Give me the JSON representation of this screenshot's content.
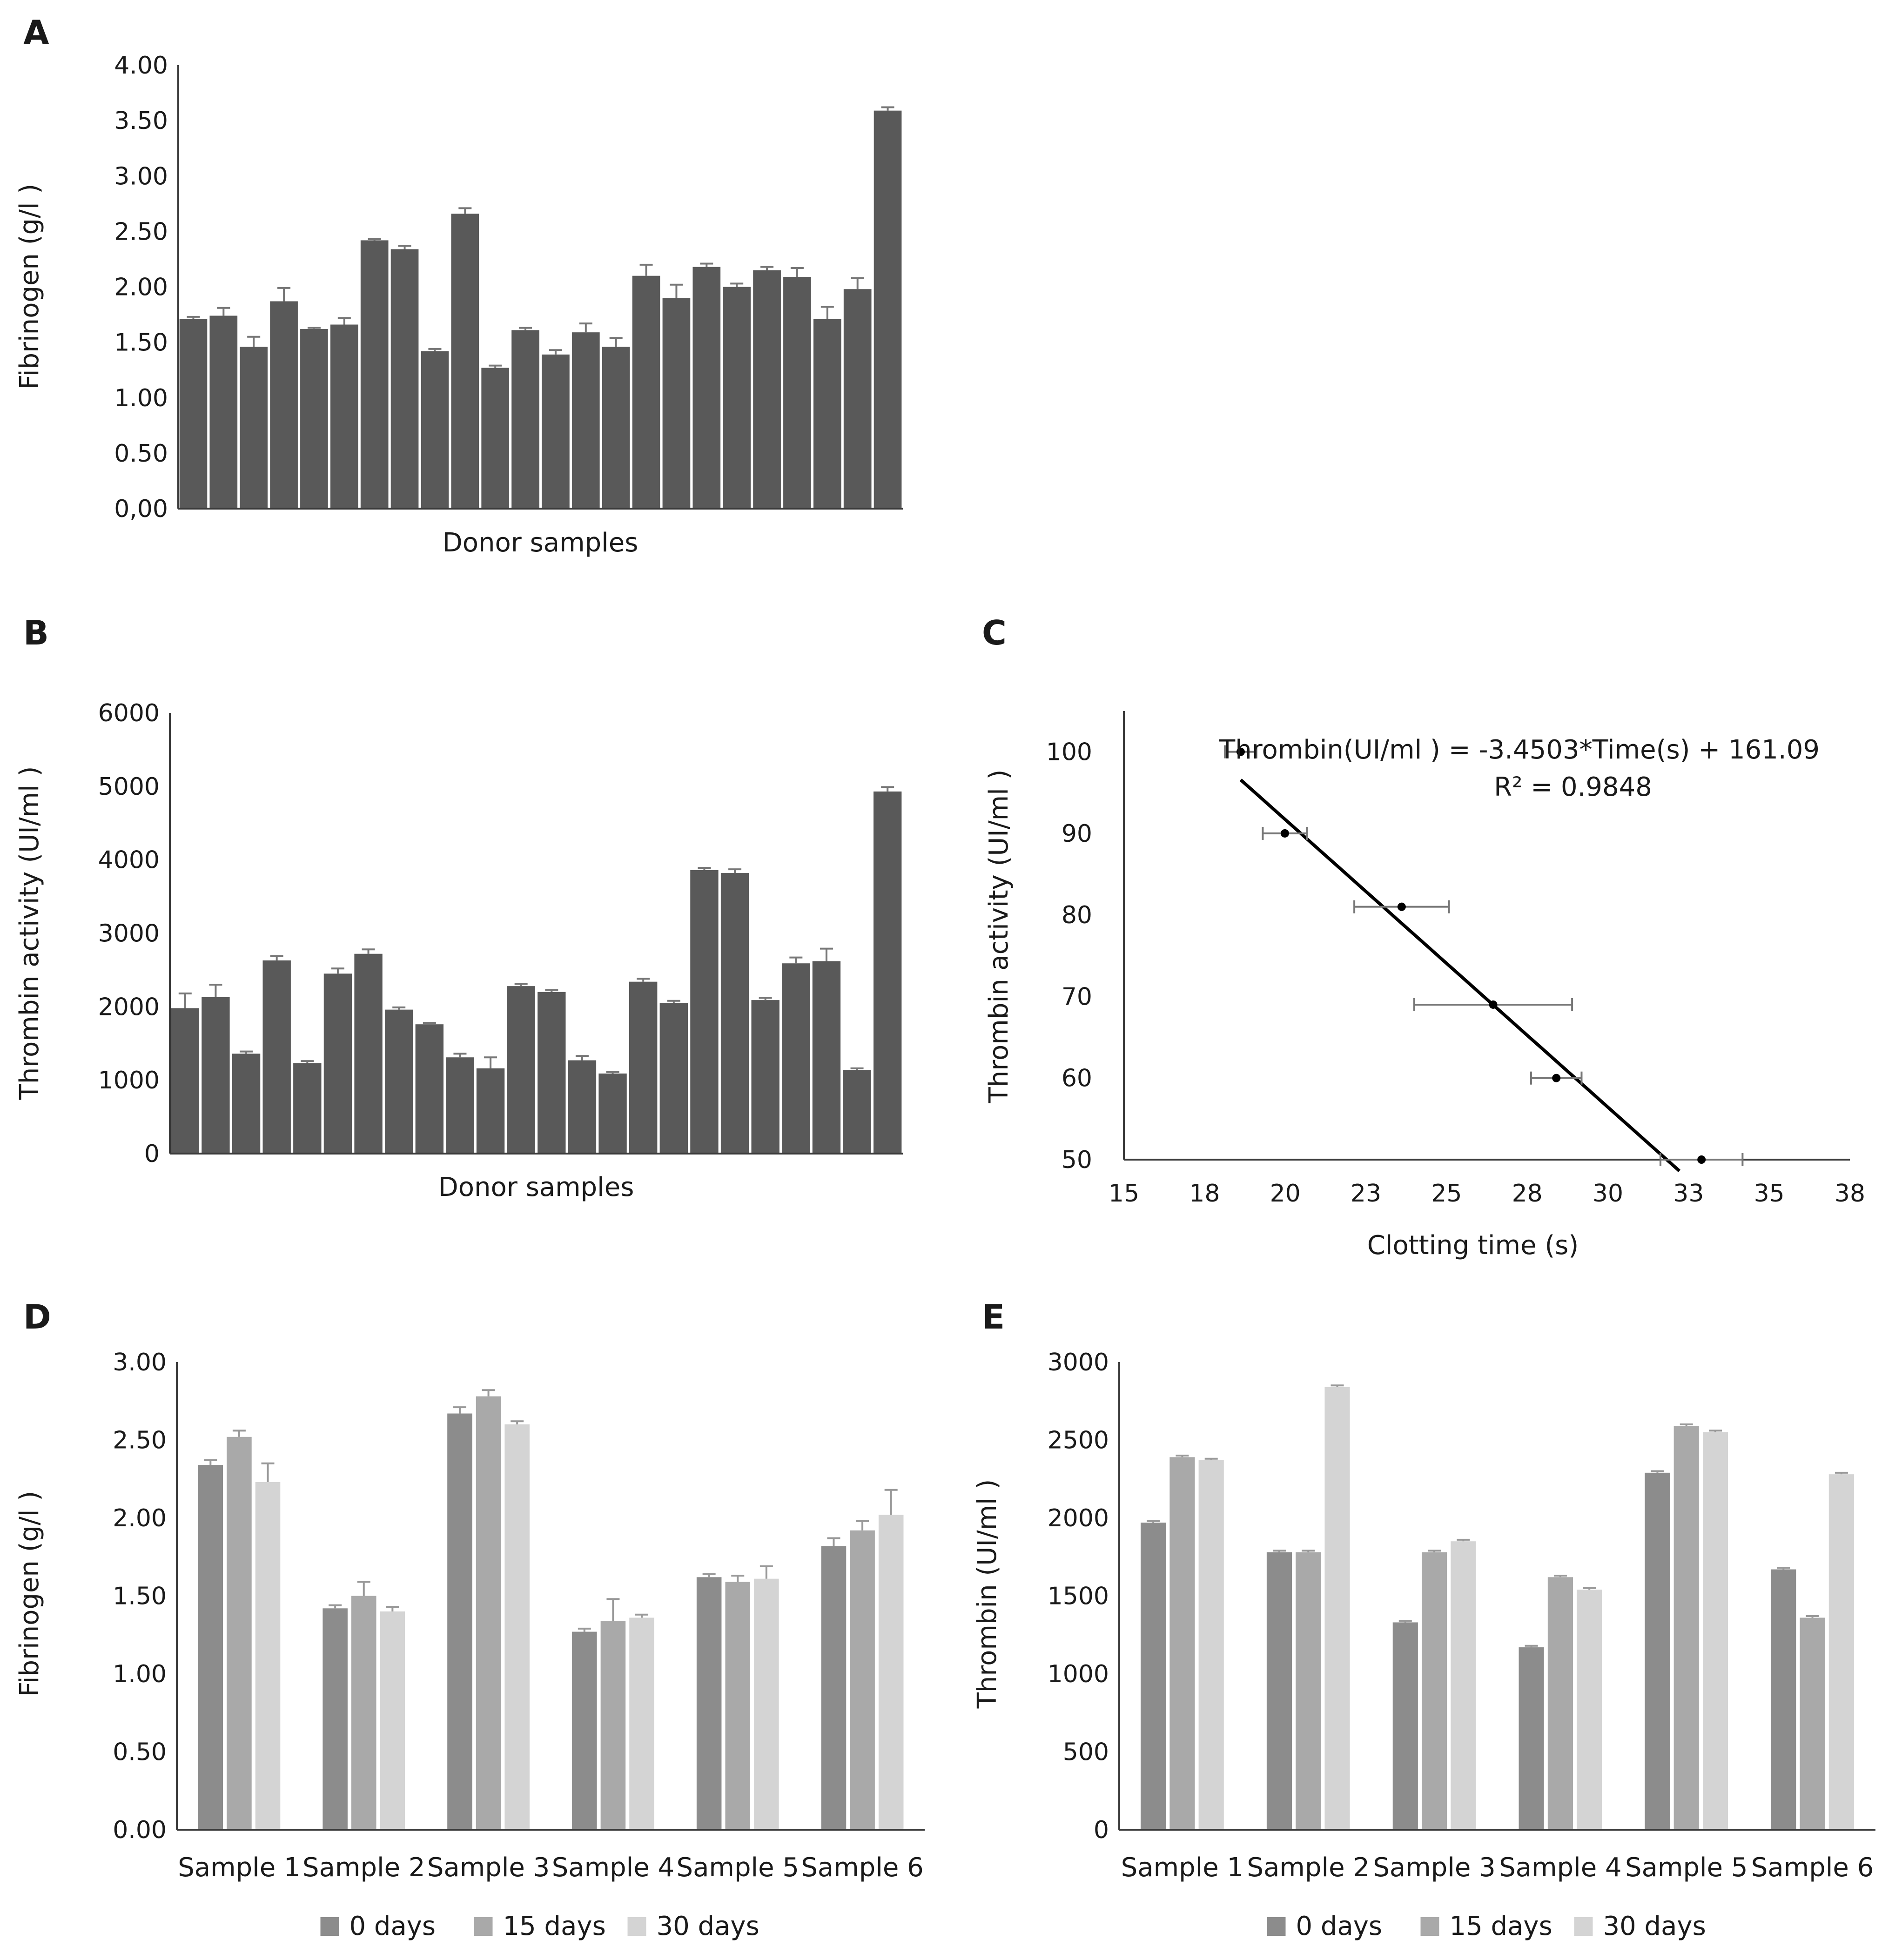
{
  "chart_data": [
    {
      "panel": "A",
      "type": "bar",
      "title": "",
      "xlabel": "Donor samples",
      "ylabel": "Fibrinogen (g/l )",
      "ylim": [
        0,
        4
      ],
      "yticks": [
        "0,00",
        "0.50",
        "1.00",
        "1.50",
        "2.00",
        "2.50",
        "3.00",
        "3.50",
        "4.00"
      ],
      "grid": false,
      "color": "#595959",
      "values": [
        1.71,
        1.74,
        1.46,
        1.87,
        1.62,
        1.66,
        2.42,
        2.34,
        1.42,
        2.66,
        1.27,
        1.61,
        1.39,
        1.59,
        1.46,
        2.1,
        1.9,
        2.18,
        2.0,
        2.15,
        2.09,
        1.71,
        1.98,
        3.59
      ],
      "errors": [
        0.02,
        0.07,
        0.09,
        0.12,
        0.01,
        0.06,
        0.01,
        0.03,
        0.02,
        0.05,
        0.02,
        0.02,
        0.04,
        0.08,
        0.08,
        0.1,
        0.12,
        0.03,
        0.03,
        0.03,
        0.08,
        0.11,
        0.1,
        0.03
      ]
    },
    {
      "panel": "B",
      "type": "bar",
      "title": "",
      "xlabel": "Donor samples",
      "ylabel": "Thrombin activity (UI/ml )",
      "ylim": [
        0,
        6000
      ],
      "yticks": [
        "0",
        "1000",
        "2000",
        "3000",
        "4000",
        "5000",
        "6000"
      ],
      "grid": false,
      "color": "#595959",
      "values": [
        1980,
        2130,
        1360,
        2630,
        1230,
        2450,
        2720,
        1960,
        1760,
        1310,
        1160,
        2280,
        2200,
        1270,
        1090,
        2340,
        2050,
        3860,
        3820,
        2090,
        2590,
        2620,
        1140,
        4930
      ],
      "errors": [
        200,
        170,
        30,
        60,
        30,
        70,
        60,
        30,
        20,
        50,
        150,
        30,
        30,
        60,
        20,
        40,
        30,
        30,
        50,
        30,
        80,
        170,
        20,
        60
      ]
    },
    {
      "panel": "C",
      "type": "scatter",
      "title": "",
      "xlabel": "Clotting time (s)",
      "ylabel": "Thrombin  activity (UI/ml )",
      "xlim": [
        15,
        38
      ],
      "ylim": [
        50,
        105
      ],
      "xticks": [
        "15",
        "18",
        "20",
        "23",
        "25",
        "28",
        "30",
        "33",
        "35",
        "38"
      ],
      "yticks": [
        "50",
        "60",
        "70",
        "80",
        "90",
        "100"
      ],
      "x": [
        18.7,
        20.1,
        23.8,
        26.7,
        28.7,
        33.3
      ],
      "y": [
        100,
        90,
        81,
        69,
        60,
        50
      ],
      "xerr": [
        0.5,
        0.7,
        1.5,
        2.5,
        0.8,
        1.3
      ],
      "trendline": {
        "slope": -3.4503,
        "intercept": 161.09,
        "x_range": [
          18.7,
          32.6
        ]
      },
      "equation": "Thrombin(UI/ml ) = -3.4503*Time(s) + 161.09",
      "r2": "R² = 0.9848"
    },
    {
      "panel": "D",
      "type": "bar",
      "title": "",
      "xlabel": "",
      "ylabel": "Fibrinogen (g/l )",
      "ylim": [
        0,
        3
      ],
      "yticks": [
        "0.00",
        "0.50",
        "1.00",
        "1.50",
        "2.00",
        "2.50",
        "3.00"
      ],
      "categories": [
        "Sample 1",
        "Sample 2",
        "Sample 3",
        "Sample 4",
        "Sample 5",
        "Sample 6"
      ],
      "series": [
        {
          "name": "0 days",
          "color": "#8c8c8c",
          "values": [
            2.34,
            1.42,
            2.67,
            1.27,
            1.62,
            1.82
          ],
          "errors": [
            0.03,
            0.02,
            0.04,
            0.02,
            0.02,
            0.05
          ]
        },
        {
          "name": "15 days",
          "color": "#a9a9a9",
          "values": [
            2.52,
            1.5,
            2.78,
            1.34,
            1.59,
            1.92
          ],
          "errors": [
            0.04,
            0.09,
            0.04,
            0.14,
            0.04,
            0.06
          ]
        },
        {
          "name": "30 days",
          "color": "#d4d4d4",
          "values": [
            2.23,
            1.4,
            2.6,
            1.36,
            1.61,
            2.02
          ],
          "errors": [
            0.12,
            0.03,
            0.02,
            0.02,
            0.08,
            0.16
          ]
        }
      ],
      "legend": "bottom"
    },
    {
      "panel": "E",
      "type": "bar",
      "title": "",
      "xlabel": "",
      "ylabel": "Thrombin (UI/ml )",
      "ylim": [
        0,
        3000
      ],
      "yticks": [
        "0",
        "500",
        "1000",
        "1500",
        "2000",
        "2500",
        "3000"
      ],
      "categories": [
        "Sample 1",
        "Sample 2",
        "Sample 3",
        "Sample 4",
        "Sample 5",
        "Sample 6"
      ],
      "series": [
        {
          "name": "0 days",
          "color": "#8c8c8c",
          "values": [
            1970,
            1780,
            1330,
            1170,
            2290,
            1670
          ],
          "errors": [
            10,
            10,
            10,
            10,
            10,
            10
          ]
        },
        {
          "name": "15 days",
          "color": "#a9a9a9",
          "values": [
            2390,
            1780,
            1780,
            1620,
            2590,
            1360
          ],
          "errors": [
            10,
            10,
            10,
            10,
            10,
            10
          ]
        },
        {
          "name": "30 days",
          "color": "#d4d4d4",
          "values": [
            2370,
            2840,
            1850,
            1540,
            2550,
            2280
          ],
          "errors": [
            10,
            10,
            10,
            10,
            10,
            10
          ]
        }
      ],
      "legend": "bottom"
    }
  ]
}
